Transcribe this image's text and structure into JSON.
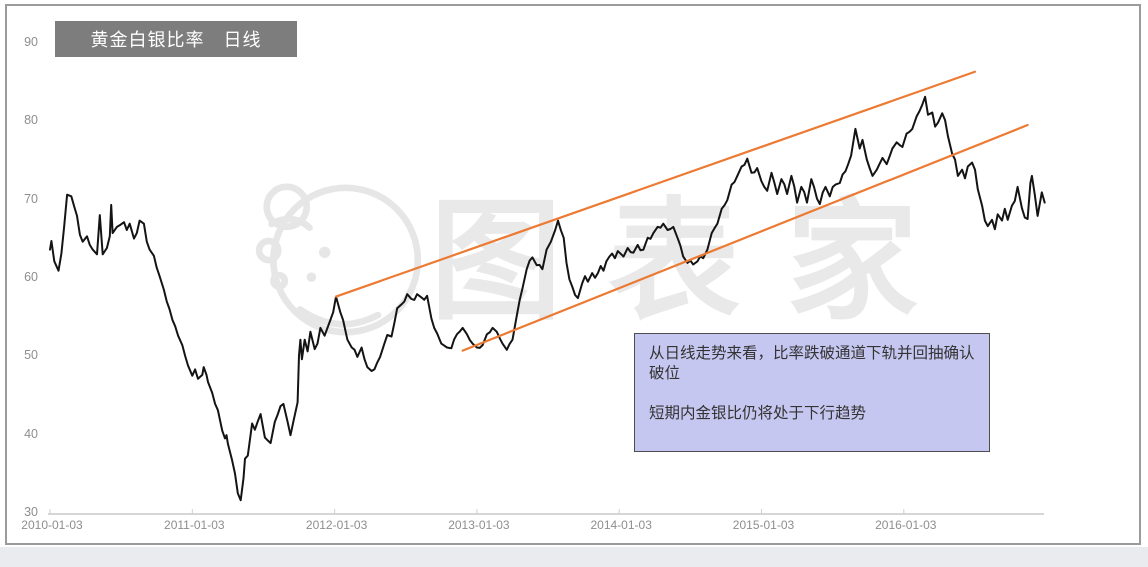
{
  "title": {
    "text": "黄金白银比率　日线",
    "bg_color": "#7d7d7d",
    "text_color": "#ffffff"
  },
  "watermark": {
    "text": "图表家",
    "color": "#e9e9e9",
    "logo": "mascot-head-outline-logo"
  },
  "annotation": {
    "lines": [
      "从日线走势来看，比率跌破通道下轨并回抽确认破位",
      "短期内金银比仍将处于下行趋势"
    ],
    "bg_color": "#c6c7f0",
    "border_color": "#4d4d4d"
  },
  "chart_data": {
    "type": "line",
    "title": "黄金白银比率 日线",
    "grid": "off",
    "x_axis": {
      "tick_labels": [
        "2010-01-03",
        "2011-01-03",
        "2012-01-03",
        "2013-01-03",
        "2014-01-03",
        "2015-01-03",
        "2016-01-03"
      ],
      "unit_note": "series x = years elapsed since 2010-01-03, one tick per year"
    },
    "y_axis": {
      "ticks": [
        90,
        80,
        70,
        60,
        50,
        40,
        30
      ],
      "range": [
        30,
        90
      ]
    },
    "series": [
      {
        "name": "黄金白银比率",
        "color": "#141414",
        "points": [
          [
            0.0,
            63.5
          ],
          [
            0.01,
            64.6
          ],
          [
            0.03,
            62.0
          ],
          [
            0.06,
            60.8
          ],
          [
            0.08,
            63.0
          ],
          [
            0.1,
            66.5
          ],
          [
            0.12,
            70.5
          ],
          [
            0.15,
            70.3
          ],
          [
            0.17,
            69.0
          ],
          [
            0.19,
            67.8
          ],
          [
            0.21,
            65.4
          ],
          [
            0.23,
            64.5
          ],
          [
            0.26,
            65.2
          ],
          [
            0.28,
            64.1
          ],
          [
            0.3,
            63.5
          ],
          [
            0.33,
            62.9
          ],
          [
            0.35,
            67.9
          ],
          [
            0.37,
            62.9
          ],
          [
            0.4,
            63.7
          ],
          [
            0.42,
            65.2
          ],
          [
            0.43,
            69.2
          ],
          [
            0.44,
            65.6
          ],
          [
            0.47,
            66.4
          ],
          [
            0.49,
            66.6
          ],
          [
            0.52,
            67.0
          ],
          [
            0.54,
            66.0
          ],
          [
            0.56,
            66.8
          ],
          [
            0.59,
            64.9
          ],
          [
            0.61,
            65.6
          ],
          [
            0.63,
            67.2
          ],
          [
            0.66,
            66.8
          ],
          [
            0.68,
            64.5
          ],
          [
            0.7,
            63.5
          ],
          [
            0.73,
            62.7
          ],
          [
            0.75,
            61.2
          ],
          [
            0.77,
            60.1
          ],
          [
            0.8,
            58.4
          ],
          [
            0.82,
            56.9
          ],
          [
            0.84,
            55.9
          ],
          [
            0.88,
            53.7
          ],
          [
            0.9,
            52.5
          ],
          [
            0.93,
            51.3
          ],
          [
            0.95,
            49.9
          ],
          [
            0.97,
            48.7
          ],
          [
            1.0,
            47.4
          ],
          [
            1.02,
            48.2
          ],
          [
            1.04,
            47.0
          ],
          [
            1.07,
            47.5
          ],
          [
            1.08,
            48.5
          ],
          [
            1.1,
            47.5
          ],
          [
            1.11,
            46.6
          ],
          [
            1.14,
            45.2
          ],
          [
            1.16,
            43.8
          ],
          [
            1.18,
            43.0
          ],
          [
            1.21,
            40.4
          ],
          [
            1.23,
            39.4
          ],
          [
            1.24,
            39.8
          ],
          [
            1.25,
            38.7
          ],
          [
            1.28,
            36.6
          ],
          [
            1.3,
            34.9
          ],
          [
            1.32,
            32.4
          ],
          [
            1.34,
            31.5
          ],
          [
            1.36,
            34.3
          ],
          [
            1.37,
            36.8
          ],
          [
            1.39,
            37.2
          ],
          [
            1.42,
            41.3
          ],
          [
            1.44,
            40.5
          ],
          [
            1.48,
            42.5
          ],
          [
            1.51,
            39.5
          ],
          [
            1.55,
            38.8
          ],
          [
            1.58,
            41.5
          ],
          [
            1.62,
            43.5
          ],
          [
            1.64,
            43.8
          ],
          [
            1.67,
            41.5
          ],
          [
            1.69,
            39.8
          ],
          [
            1.71,
            41.5
          ],
          [
            1.74,
            44.0
          ],
          [
            1.75,
            50.0
          ],
          [
            1.76,
            52.0
          ],
          [
            1.77,
            49.5
          ],
          [
            1.79,
            52.0
          ],
          [
            1.81,
            50.5
          ],
          [
            1.83,
            53.0
          ],
          [
            1.86,
            50.8
          ],
          [
            1.88,
            51.5
          ],
          [
            1.9,
            53.5
          ],
          [
            1.93,
            52.5
          ],
          [
            1.96,
            54.0
          ],
          [
            1.99,
            55.5
          ],
          [
            2.01,
            57.5
          ],
          [
            2.04,
            55.5
          ],
          [
            2.06,
            54.5
          ],
          [
            2.09,
            52.0
          ],
          [
            2.12,
            51.0
          ],
          [
            2.16,
            49.8
          ],
          [
            2.19,
            51.0
          ],
          [
            2.21,
            49.5
          ],
          [
            2.23,
            48.5
          ],
          [
            2.26,
            48.0
          ],
          [
            2.28,
            48.2
          ],
          [
            2.32,
            49.8
          ],
          [
            2.35,
            51.5
          ],
          [
            2.37,
            52.6
          ],
          [
            2.4,
            52.4
          ],
          [
            2.44,
            56.0
          ],
          [
            2.47,
            56.5
          ],
          [
            2.51,
            57.8
          ],
          [
            2.54,
            57.2
          ],
          [
            2.58,
            57.8
          ],
          [
            2.61,
            57.4
          ],
          [
            2.65,
            57.6
          ],
          [
            2.68,
            54.7
          ],
          [
            2.72,
            52.8
          ],
          [
            2.75,
            51.5
          ],
          [
            2.79,
            51.0
          ],
          [
            2.82,
            50.9
          ],
          [
            2.86,
            52.7
          ],
          [
            2.9,
            53.5
          ],
          [
            2.93,
            52.7
          ],
          [
            2.97,
            51.5
          ],
          [
            3.0,
            51.0
          ],
          [
            3.04,
            51.3
          ],
          [
            3.07,
            52.7
          ],
          [
            3.11,
            53.5
          ],
          [
            3.14,
            53.0
          ],
          [
            3.18,
            51.5
          ],
          [
            3.21,
            50.7
          ],
          [
            3.25,
            52.0
          ],
          [
            3.28,
            55.0
          ],
          [
            3.32,
            58.5
          ],
          [
            3.35,
            61.0
          ],
          [
            3.39,
            62.5
          ],
          [
            3.42,
            61.5
          ],
          [
            3.46,
            61.0
          ],
          [
            3.49,
            63.5
          ],
          [
            3.52,
            64.5
          ],
          [
            3.55,
            66.0
          ],
          [
            3.57,
            67.2
          ],
          [
            3.61,
            65.0
          ],
          [
            3.63,
            61.8
          ],
          [
            3.65,
            59.7
          ],
          [
            3.69,
            57.7
          ],
          [
            3.71,
            57.3
          ],
          [
            3.74,
            59.2
          ],
          [
            3.76,
            60.1
          ],
          [
            3.78,
            59.4
          ],
          [
            3.81,
            60.5
          ],
          [
            3.83,
            59.9
          ],
          [
            3.87,
            61.4
          ],
          [
            3.89,
            60.8
          ],
          [
            3.91,
            62.0
          ],
          [
            3.95,
            63.0
          ],
          [
            3.97,
            62.4
          ],
          [
            3.99,
            63.3
          ],
          [
            4.03,
            62.6
          ],
          [
            4.06,
            63.7
          ],
          [
            4.1,
            63.1
          ],
          [
            4.13,
            64.1
          ],
          [
            4.17,
            63.5
          ],
          [
            4.2,
            65.0
          ],
          [
            4.24,
            65.6
          ],
          [
            4.27,
            66.4
          ],
          [
            4.31,
            66.8
          ],
          [
            4.34,
            66.0
          ],
          [
            4.38,
            66.4
          ],
          [
            4.41,
            65.0
          ],
          [
            4.45,
            62.6
          ],
          [
            4.48,
            61.8
          ],
          [
            4.52,
            61.6
          ],
          [
            4.55,
            62.0
          ],
          [
            4.59,
            62.4
          ],
          [
            4.62,
            63.5
          ],
          [
            4.65,
            65.6
          ],
          [
            4.69,
            66.8
          ],
          [
            4.72,
            68.7
          ],
          [
            4.76,
            69.8
          ],
          [
            4.79,
            71.8
          ],
          [
            4.83,
            72.9
          ],
          [
            4.86,
            74.1
          ],
          [
            4.9,
            75.1
          ],
          [
            4.93,
            73.3
          ],
          [
            4.97,
            73.9
          ],
          [
            5.0,
            72.2
          ],
          [
            5.04,
            71.0
          ],
          [
            5.07,
            73.3
          ],
          [
            5.11,
            70.6
          ],
          [
            5.14,
            72.5
          ],
          [
            5.18,
            70.6
          ],
          [
            5.21,
            72.9
          ],
          [
            5.25,
            69.5
          ],
          [
            5.28,
            71.5
          ],
          [
            5.32,
            69.5
          ],
          [
            5.35,
            72.5
          ],
          [
            5.39,
            70.0
          ],
          [
            5.41,
            69.3
          ],
          [
            5.45,
            71.5
          ],
          [
            5.48,
            70.3
          ],
          [
            5.52,
            71.8
          ],
          [
            5.55,
            72.0
          ],
          [
            5.59,
            73.5
          ],
          [
            5.63,
            75.5
          ],
          [
            5.66,
            78.9
          ],
          [
            5.69,
            76.4
          ],
          [
            5.71,
            77.5
          ],
          [
            5.74,
            75.0
          ],
          [
            5.78,
            72.9
          ],
          [
            5.81,
            73.7
          ],
          [
            5.85,
            75.2
          ],
          [
            5.88,
            74.4
          ],
          [
            5.92,
            76.4
          ],
          [
            5.95,
            77.2
          ],
          [
            5.99,
            76.6
          ],
          [
            6.02,
            78.3
          ],
          [
            6.06,
            78.9
          ],
          [
            6.09,
            80.5
          ],
          [
            6.13,
            82.0
          ],
          [
            6.15,
            83.0
          ],
          [
            6.17,
            80.7
          ],
          [
            6.2,
            81.0
          ],
          [
            6.22,
            79.2
          ],
          [
            6.24,
            79.7
          ],
          [
            6.27,
            80.9
          ],
          [
            6.29,
            80.0
          ],
          [
            6.31,
            78.0
          ],
          [
            6.34,
            75.7
          ],
          [
            6.36,
            75.0
          ],
          [
            6.38,
            72.9
          ],
          [
            6.41,
            73.7
          ],
          [
            6.43,
            72.6
          ],
          [
            6.45,
            74.1
          ],
          [
            6.48,
            74.6
          ],
          [
            6.5,
            73.7
          ],
          [
            6.52,
            71.2
          ],
          [
            6.55,
            69.1
          ],
          [
            6.57,
            67.2
          ],
          [
            6.59,
            66.5
          ],
          [
            6.62,
            67.3
          ],
          [
            6.64,
            66.1
          ],
          [
            6.66,
            68.0
          ],
          [
            6.69,
            67.2
          ],
          [
            6.71,
            68.7
          ],
          [
            6.73,
            67.3
          ],
          [
            6.76,
            69.1
          ],
          [
            6.78,
            69.7
          ],
          [
            6.8,
            71.5
          ],
          [
            6.83,
            68.8
          ],
          [
            6.85,
            67.6
          ],
          [
            6.87,
            67.4
          ],
          [
            6.89,
            72.0
          ],
          [
            6.9,
            72.9
          ],
          [
            6.92,
            70.6
          ],
          [
            6.94,
            67.8
          ],
          [
            6.97,
            70.8
          ],
          [
            6.99,
            69.5
          ]
        ]
      }
    ],
    "trend_channel": {
      "name": "上升通道",
      "color": "#ed7a33",
      "upper_line": [
        [
          2.01,
          57.5
        ],
        [
          6.5,
          86.2
        ]
      ],
      "lower_line": [
        [
          2.9,
          50.6
        ],
        [
          6.87,
          79.4
        ]
      ]
    }
  }
}
